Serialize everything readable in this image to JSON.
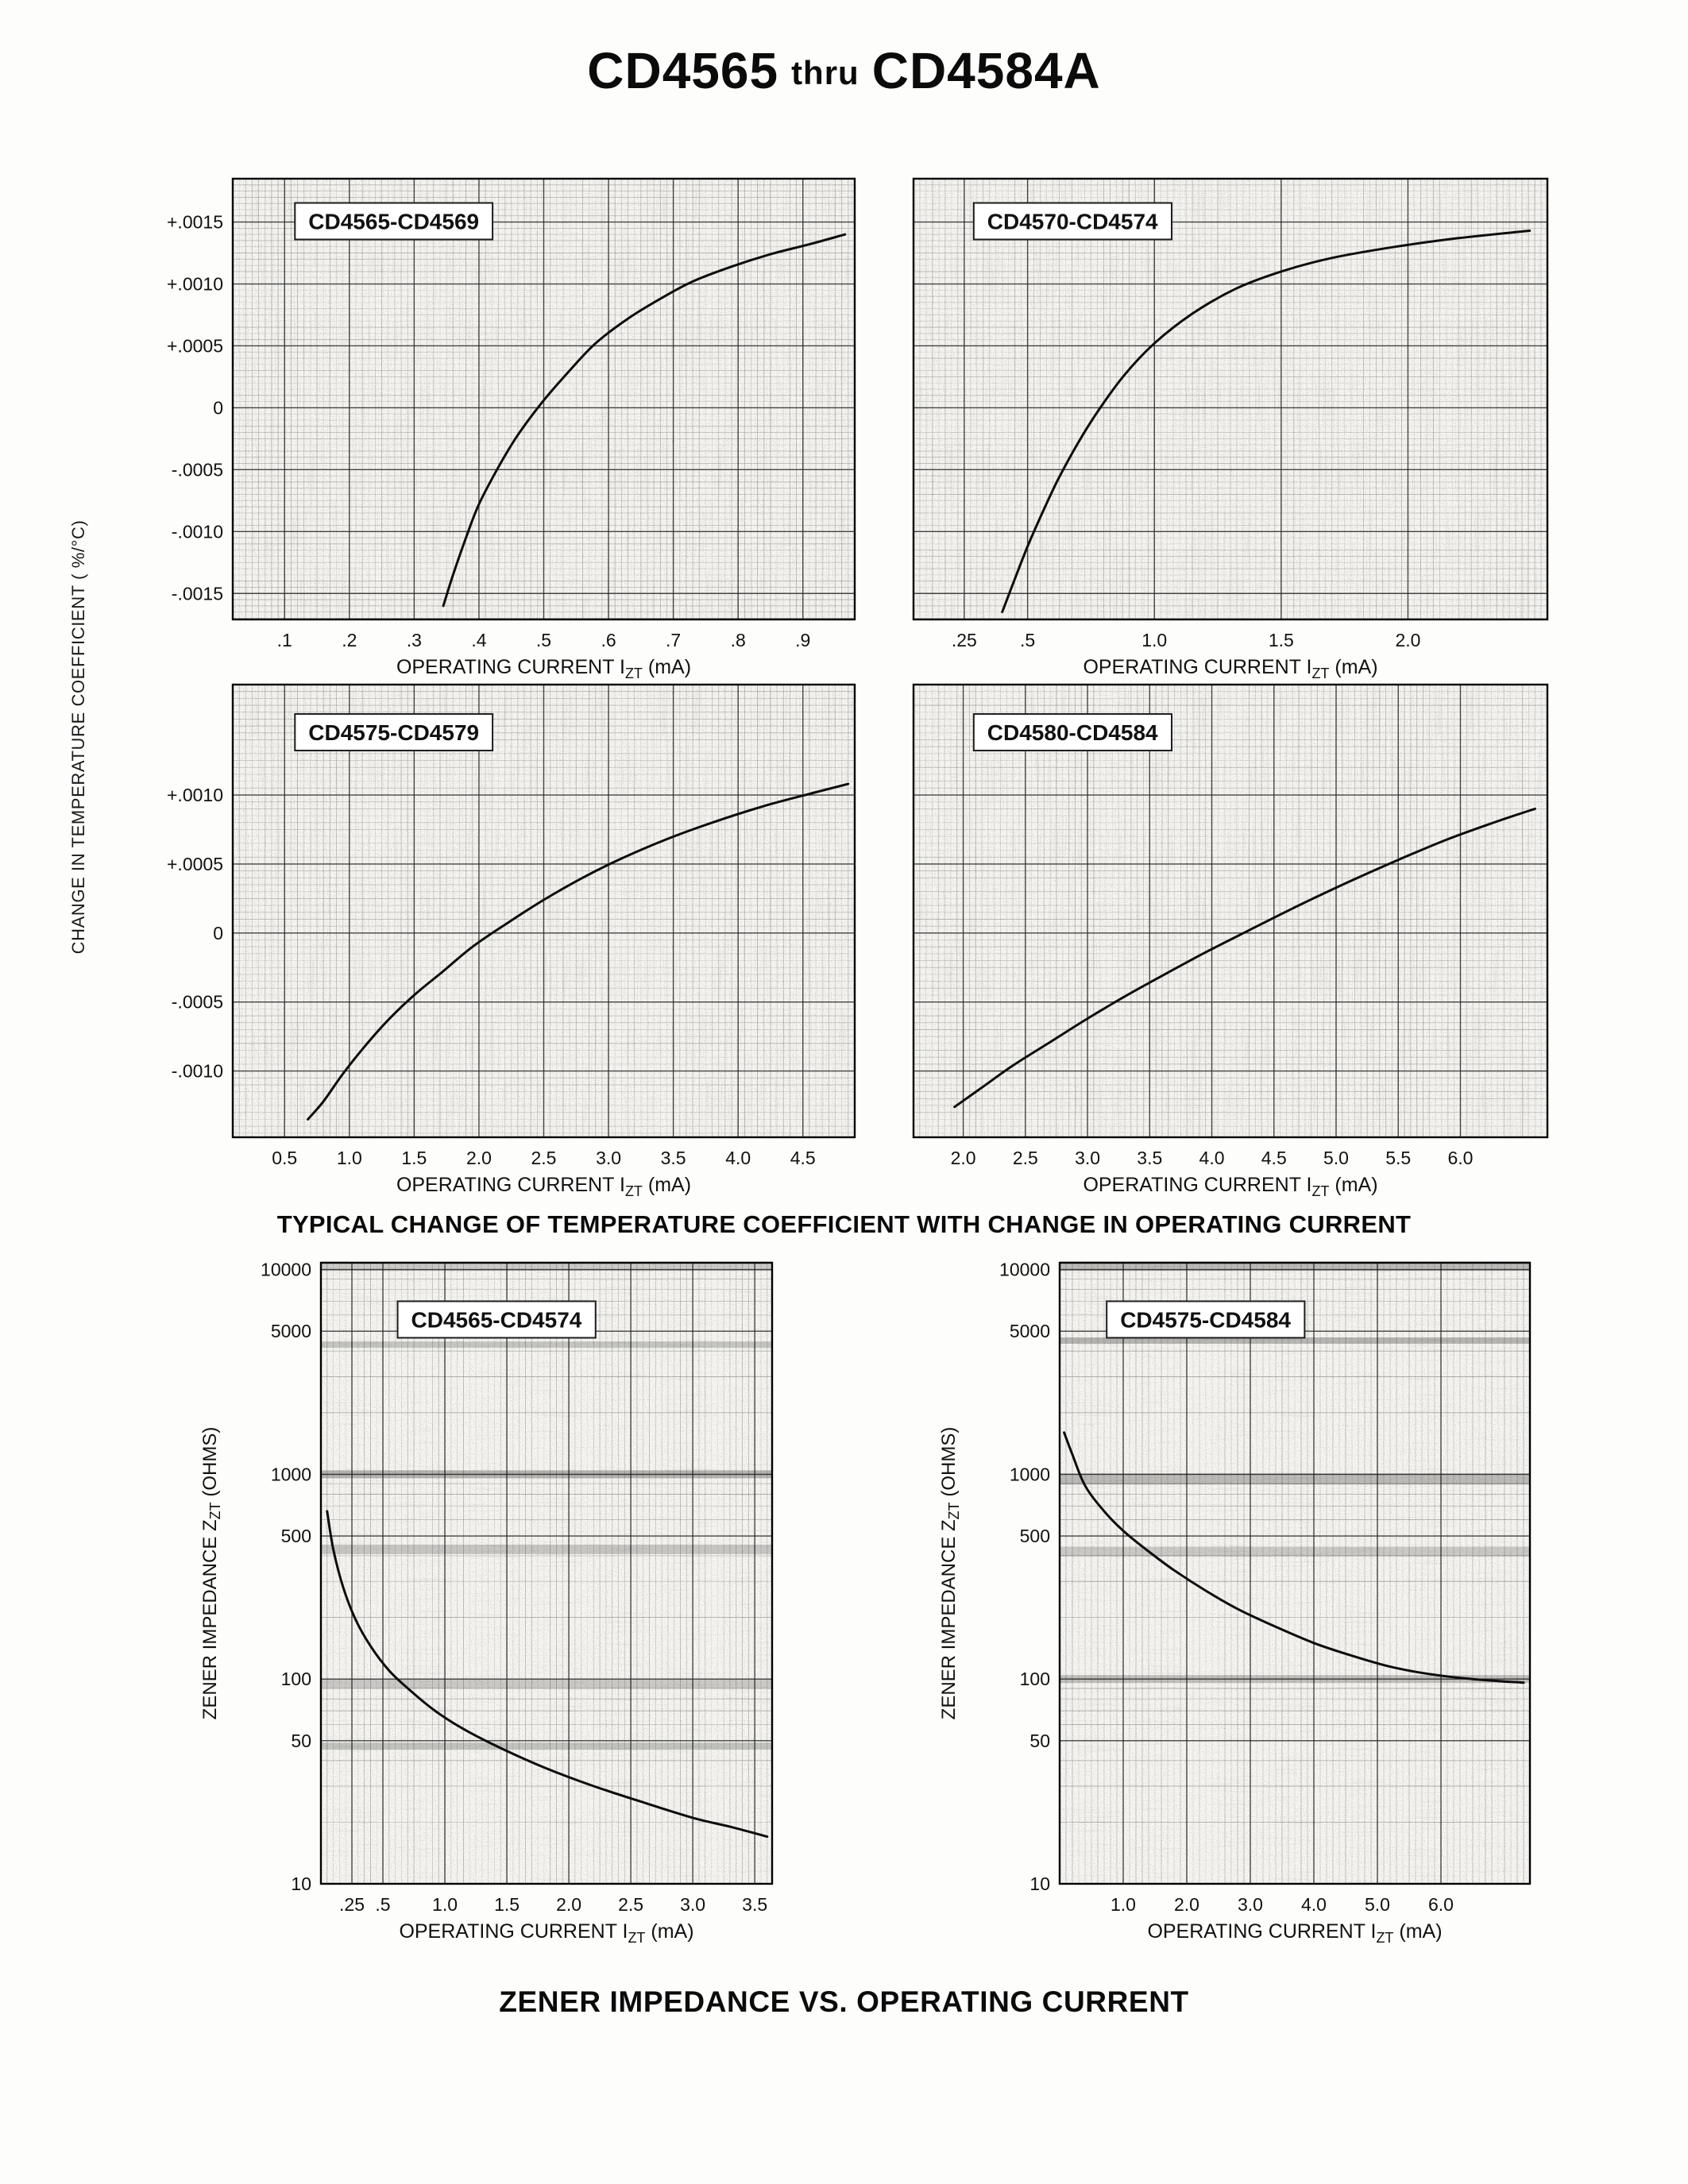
{
  "page": {
    "title": {
      "left": "CD4565",
      "mid": "thru",
      "right": "CD4584A"
    },
    "left_axis_label": "CHANGE IN TEMPERATURE COEFFICIENT ( %/°C)",
    "captions": {
      "temp": "TYPICAL CHANGE OF TEMPERATURE COEFFICIENT WITH CHANGE IN OPERATING CURRENT",
      "impedance": "ZENER IMPEDANCE VS. OPERATING CURRENT"
    }
  },
  "chart_data": [
    {
      "type": "line",
      "title": "CD4565-CD4569",
      "xlabel": {
        "pre": "OPERATING CURRENT I",
        "sub": "ZT",
        "post": " (mA)"
      },
      "ylabel": null,
      "y_scale": "linear",
      "x_range": [
        0.02,
        0.98
      ],
      "y_range": [
        -0.00171,
        0.00185
      ],
      "x_minor": 0.01,
      "y_minor": 5e-05,
      "x_ticks": [
        {
          "v": 0.1,
          "label": ".1"
        },
        {
          "v": 0.2,
          "label": ".2"
        },
        {
          "v": 0.3,
          "label": ".3"
        },
        {
          "v": 0.4,
          "label": ".4"
        },
        {
          "v": 0.5,
          "label": ".5"
        },
        {
          "v": 0.6,
          "label": ".6"
        },
        {
          "v": 0.7,
          "label": ".7"
        },
        {
          "v": 0.8,
          "label": ".8"
        },
        {
          "v": 0.9,
          "label": ".9"
        }
      ],
      "y_ticks": [
        {
          "v": 0.0015,
          "label": "+.0015"
        },
        {
          "v": 0.001,
          "label": "+.0010"
        },
        {
          "v": 0.0005,
          "label": "+.0005"
        },
        {
          "v": 0,
          "label": "0"
        },
        {
          "v": -0.0005,
          "label": "-.0005"
        },
        {
          "v": -0.001,
          "label": "-.0010"
        },
        {
          "v": -0.0015,
          "label": "-.0015"
        }
      ],
      "y_tick_labels_visible": true,
      "series": [
        {
          "name": "typical",
          "points": [
            [
              0.345,
              -0.0016
            ],
            [
              0.36,
              -0.00135
            ],
            [
              0.38,
              -0.00105
            ],
            [
              0.4,
              -0.00078
            ],
            [
              0.43,
              -0.00048
            ],
            [
              0.46,
              -0.00022
            ],
            [
              0.5,
              6e-05
            ],
            [
              0.54,
              0.0003
            ],
            [
              0.58,
              0.00052
            ],
            [
              0.63,
              0.00072
            ],
            [
              0.68,
              0.00088
            ],
            [
              0.73,
              0.00102
            ],
            [
              0.79,
              0.00114
            ],
            [
              0.85,
              0.00124
            ],
            [
              0.91,
              0.00132
            ],
            [
              0.965,
              0.0014
            ]
          ]
        }
      ]
    },
    {
      "type": "line",
      "title": "CD4570-CD4574",
      "xlabel": {
        "pre": "OPERATING CURRENT I",
        "sub": "ZT",
        "post": " (mA)"
      },
      "ylabel": null,
      "y_scale": "linear",
      "x_range": [
        0.05,
        2.55
      ],
      "y_range": [
        -0.00171,
        0.00185
      ],
      "x_minor": 0.025,
      "y_minor": 5e-05,
      "x_ticks": [
        {
          "v": 0.25,
          "label": ".25"
        },
        {
          "v": 0.5,
          "label": ".5"
        },
        {
          "v": 1.0,
          "label": "1.0"
        },
        {
          "v": 1.5,
          "label": "1.5"
        },
        {
          "v": 2.0,
          "label": "2.0"
        }
      ],
      "y_ticks": [
        {
          "v": 0.0015,
          "label": "+.0015"
        },
        {
          "v": 0.001,
          "label": "+.0010"
        },
        {
          "v": 0.0005,
          "label": "+.0005"
        },
        {
          "v": 0,
          "label": "0"
        },
        {
          "v": -0.0005,
          "label": "-.0005"
        },
        {
          "v": -0.001,
          "label": "-.0010"
        },
        {
          "v": -0.0015,
          "label": "-.0015"
        }
      ],
      "y_tick_labels_visible": false,
      "series": [
        {
          "name": "typical",
          "points": [
            [
              0.4,
              -0.00165
            ],
            [
              0.45,
              -0.00138
            ],
            [
              0.5,
              -0.00112
            ],
            [
              0.56,
              -0.00084
            ],
            [
              0.62,
              -0.00058
            ],
            [
              0.7,
              -0.00028
            ],
            [
              0.78,
              -2e-05
            ],
            [
              0.88,
              0.00026
            ],
            [
              1.0,
              0.00052
            ],
            [
              1.15,
              0.00076
            ],
            [
              1.32,
              0.00096
            ],
            [
              1.5,
              0.0011
            ],
            [
              1.7,
              0.00121
            ],
            [
              1.95,
              0.0013
            ],
            [
              2.2,
              0.00137
            ],
            [
              2.48,
              0.00143
            ]
          ]
        }
      ]
    },
    {
      "type": "line",
      "title": "CD4575-CD4579",
      "xlabel": {
        "pre": "OPERATING CURRENT I",
        "sub": "ZT",
        "post": " (mA)"
      },
      "ylabel": null,
      "y_scale": "linear",
      "x_range": [
        0.1,
        4.9
      ],
      "y_range": [
        -0.00148,
        0.0018
      ],
      "x_minor": 0.05,
      "y_minor": 5e-05,
      "x_ticks": [
        {
          "v": 0.5,
          "label": "0.5"
        },
        {
          "v": 1.0,
          "label": "1.0"
        },
        {
          "v": 1.5,
          "label": "1.5"
        },
        {
          "v": 2.0,
          "label": "2.0"
        },
        {
          "v": 2.5,
          "label": "2.5"
        },
        {
          "v": 3.0,
          "label": "3.0"
        },
        {
          "v": 3.5,
          "label": "3.5"
        },
        {
          "v": 4.0,
          "label": "4.0"
        },
        {
          "v": 4.5,
          "label": "4.5"
        }
      ],
      "y_ticks": [
        {
          "v": 0.001,
          "label": "+.0010"
        },
        {
          "v": 0.0005,
          "label": "+.0005"
        },
        {
          "v": 0,
          "label": "0"
        },
        {
          "v": -0.0005,
          "label": "-.0005"
        },
        {
          "v": -0.001,
          "label": "-.0010"
        }
      ],
      "y_tick_labels_visible": true,
      "series": [
        {
          "name": "typical",
          "points": [
            [
              0.68,
              -0.00135
            ],
            [
              0.8,
              -0.00122
            ],
            [
              0.95,
              -0.00102
            ],
            [
              1.12,
              -0.00082
            ],
            [
              1.3,
              -0.00063
            ],
            [
              1.5,
              -0.00045
            ],
            [
              1.72,
              -0.00028
            ],
            [
              1.95,
              -0.0001
            ],
            [
              2.2,
              6e-05
            ],
            [
              2.5,
              0.00024
            ],
            [
              2.8,
              0.0004
            ],
            [
              3.1,
              0.00054
            ],
            [
              3.45,
              0.00068
            ],
            [
              3.8,
              0.0008
            ],
            [
              4.2,
              0.00092
            ],
            [
              4.6,
              0.00102
            ],
            [
              4.85,
              0.00108
            ]
          ]
        }
      ]
    },
    {
      "type": "line",
      "title": "CD4580-CD4584",
      "xlabel": {
        "pre": "OPERATING CURRENT I",
        "sub": "ZT",
        "post": " (mA)"
      },
      "ylabel": null,
      "y_scale": "linear",
      "x_range": [
        1.6,
        6.7
      ],
      "y_range": [
        -0.00148,
        0.0018
      ],
      "x_minor": 0.05,
      "y_minor": 5e-05,
      "x_ticks": [
        {
          "v": 2.0,
          "label": "2.0"
        },
        {
          "v": 2.5,
          "label": "2.5"
        },
        {
          "v": 3.0,
          "label": "3.0"
        },
        {
          "v": 3.5,
          "label": "3.5"
        },
        {
          "v": 4.0,
          "label": "4.0"
        },
        {
          "v": 4.5,
          "label": "4.5"
        },
        {
          "v": 5.0,
          "label": "5.0"
        },
        {
          "v": 5.5,
          "label": "5.5"
        },
        {
          "v": 6.0,
          "label": "6.0"
        }
      ],
      "y_ticks": [
        {
          "v": 0.001,
          "label": "+.0010"
        },
        {
          "v": 0.0005,
          "label": "+.0005"
        },
        {
          "v": 0,
          "label": "0"
        },
        {
          "v": -0.0005,
          "label": "-.0005"
        },
        {
          "v": -0.001,
          "label": "-.0010"
        }
      ],
      "y_tick_labels_visible": false,
      "series": [
        {
          "name": "typical",
          "points": [
            [
              1.93,
              -0.00126
            ],
            [
              2.15,
              -0.00112
            ],
            [
              2.4,
              -0.00096
            ],
            [
              2.7,
              -0.00079
            ],
            [
              3.0,
              -0.00062
            ],
            [
              3.3,
              -0.00046
            ],
            [
              3.6,
              -0.00031
            ],
            [
              3.95,
              -0.00014
            ],
            [
              4.3,
              2e-05
            ],
            [
              4.7,
              0.0002
            ],
            [
              5.1,
              0.00037
            ],
            [
              5.5,
              0.00053
            ],
            [
              5.9,
              0.00068
            ],
            [
              6.3,
              0.00081
            ],
            [
              6.6,
              0.0009
            ]
          ]
        }
      ]
    },
    {
      "type": "line",
      "title": "CD4565-CD4574",
      "xlabel": {
        "pre": "OPERATING CURRENT I",
        "sub": "ZT",
        "post": " (mA)"
      },
      "ylabel": {
        "pre": "ZENER IMPEDANCE Z",
        "sub": "ZT",
        "post": " (OHMS)"
      },
      "y_scale": "log",
      "x_range": [
        0,
        3.64
      ],
      "y_range": [
        10,
        10800
      ],
      "x_minor": 0.05,
      "x_ticks": [
        {
          "v": 0.25,
          "label": ".25"
        },
        {
          "v": 0.5,
          "label": ".5"
        },
        {
          "v": 1.0,
          "label": "1.0"
        },
        {
          "v": 1.5,
          "label": "1.5"
        },
        {
          "v": 2.0,
          "label": "2.0"
        },
        {
          "v": 2.5,
          "label": "2.5"
        },
        {
          "v": 3.0,
          "label": "3.0"
        },
        {
          "v": 3.5,
          "label": "3.5"
        }
      ],
      "y_ticks": [
        {
          "v": 10000,
          "label": "10000"
        },
        {
          "v": 5000,
          "label": "5000"
        },
        {
          "v": 1000,
          "label": "1000"
        },
        {
          "v": 500,
          "label": "500"
        },
        {
          "v": 100,
          "label": "100"
        },
        {
          "v": 50,
          "label": "50"
        },
        {
          "v": 10,
          "label": "10"
        }
      ],
      "y_tick_labels_visible": true,
      "series": [
        {
          "name": "typical",
          "points": [
            [
              0.05,
              660
            ],
            [
              0.1,
              430
            ],
            [
              0.18,
              280
            ],
            [
              0.28,
              195
            ],
            [
              0.4,
              145
            ],
            [
              0.55,
              110
            ],
            [
              0.72,
              88
            ],
            [
              0.92,
              70
            ],
            [
              1.15,
              57
            ],
            [
              1.45,
              46
            ],
            [
              1.8,
              37
            ],
            [
              2.2,
              30
            ],
            [
              2.6,
              25
            ],
            [
              3.0,
              21
            ],
            [
              3.3,
              19
            ],
            [
              3.6,
              17
            ]
          ]
        }
      ]
    },
    {
      "type": "line",
      "title": "CD4575-CD4584",
      "xlabel": {
        "pre": "OPERATING CURRENT I",
        "sub": "ZT",
        "post": " (mA)"
      },
      "ylabel": {
        "pre": "ZENER IMPEDANCE Z",
        "sub": "ZT",
        "post": " (OHMS)"
      },
      "y_scale": "log",
      "x_range": [
        0,
        7.4
      ],
      "y_range": [
        10,
        10800
      ],
      "x_minor": 0.1,
      "x_ticks": [
        {
          "v": 1.0,
          "label": "1.0"
        },
        {
          "v": 2.0,
          "label": "2.0"
        },
        {
          "v": 3.0,
          "label": "3.0"
        },
        {
          "v": 4.0,
          "label": "4.0"
        },
        {
          "v": 5.0,
          "label": "5.0"
        },
        {
          "v": 6.0,
          "label": "6.0"
        }
      ],
      "y_ticks": [
        {
          "v": 10000,
          "label": "10000"
        },
        {
          "v": 5000,
          "label": "5000"
        },
        {
          "v": 1000,
          "label": "1000"
        },
        {
          "v": 500,
          "label": "500"
        },
        {
          "v": 100,
          "label": "100"
        },
        {
          "v": 50,
          "label": "50"
        },
        {
          "v": 10,
          "label": "10"
        }
      ],
      "y_tick_labels_visible": true,
      "series": [
        {
          "name": "typical",
          "points": [
            [
              0.07,
              1600
            ],
            [
              0.2,
              1250
            ],
            [
              0.4,
              880
            ],
            [
              0.7,
              660
            ],
            [
              1.0,
              530
            ],
            [
              1.4,
              420
            ],
            [
              1.8,
              340
            ],
            [
              2.3,
              270
            ],
            [
              2.8,
              220
            ],
            [
              3.4,
              180
            ],
            [
              4.0,
              150
            ],
            [
              4.6,
              130
            ],
            [
              5.2,
              115
            ],
            [
              5.8,
              106
            ],
            [
              6.5,
              100
            ],
            [
              7.3,
              96
            ]
          ]
        }
      ]
    }
  ]
}
